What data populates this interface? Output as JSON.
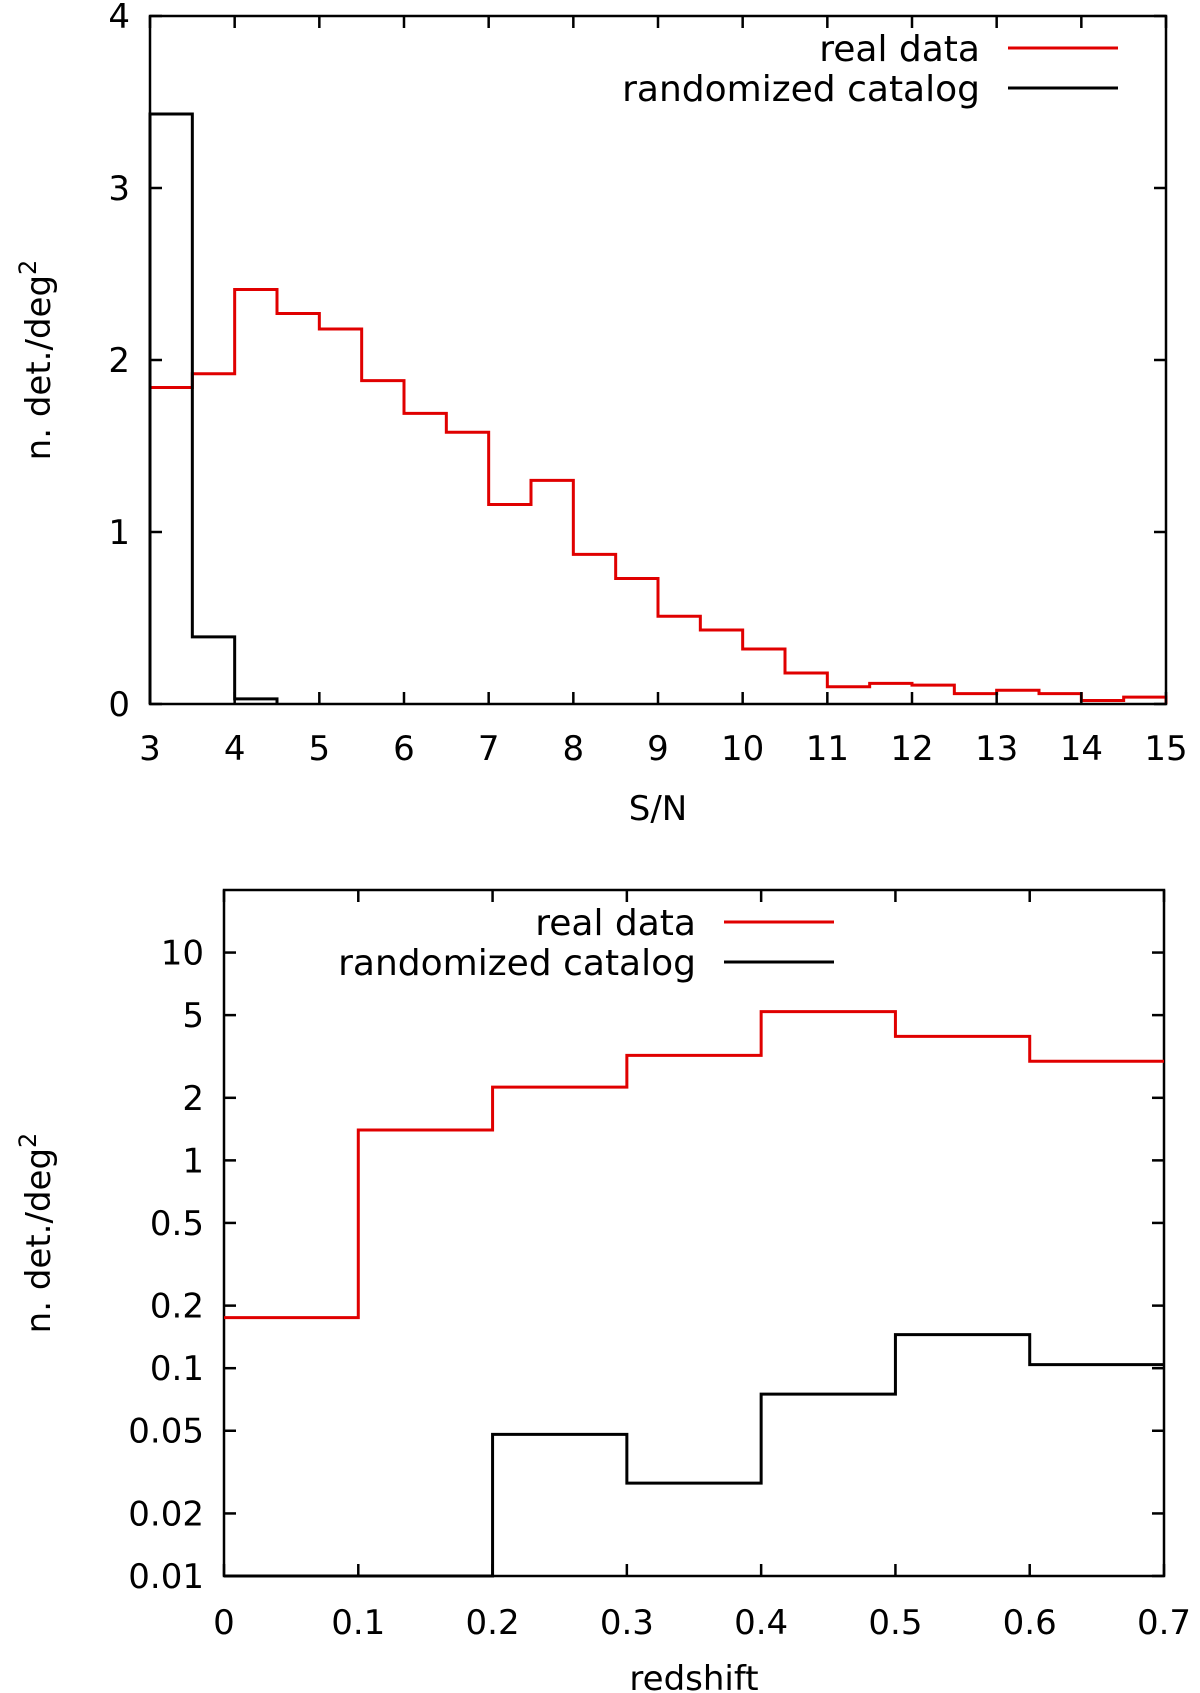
{
  "chart_data": [
    {
      "type": "histogram",
      "xlabel": "S/N",
      "ylabel": "n. det./deg",
      "ylabel_superscript": "2",
      "xlim": [
        3,
        15
      ],
      "ylim": [
        0,
        4
      ],
      "yscale": "linear",
      "xticks": [
        3,
        4,
        5,
        6,
        7,
        8,
        9,
        10,
        11,
        12,
        13,
        14,
        15
      ],
      "xtick_labels": [
        "3",
        "4",
        "5",
        "6",
        "7",
        "8",
        "9",
        "10",
        "11",
        "12",
        "13",
        "14",
        "15"
      ],
      "yticks": [
        0,
        1,
        2,
        3,
        4
      ],
      "ytick_labels": [
        "0",
        "1",
        "2",
        "3",
        "4"
      ],
      "legend_position": "top-right",
      "series": [
        {
          "name": "real data",
          "color": "#e00000",
          "bin_edges": [
            3,
            3.5,
            4,
            4.5,
            5,
            5.5,
            6,
            6.5,
            7,
            7.5,
            8,
            8.5,
            9,
            9.5,
            10,
            10.5,
            11,
            11.5,
            12,
            12.5,
            13,
            13.5,
            14,
            14.5,
            15
          ],
          "values": [
            1.84,
            1.92,
            2.41,
            2.27,
            2.18,
            1.88,
            1.69,
            1.58,
            1.16,
            1.3,
            0.87,
            0.73,
            0.51,
            0.43,
            0.32,
            0.18,
            0.1,
            0.12,
            0.11,
            0.06,
            0.08,
            0.06,
            0.02,
            0.04
          ]
        },
        {
          "name": "randomized catalog",
          "color": "#000000",
          "bin_edges": [
            3,
            3.5,
            4,
            4.5
          ],
          "values": [
            3.43,
            0.39,
            0.03
          ]
        }
      ]
    },
    {
      "type": "histogram",
      "xlabel": "redshift",
      "ylabel": "n. det./deg",
      "ylabel_superscript": "2",
      "xlim": [
        0,
        0.7
      ],
      "ylim": [
        0.01,
        20
      ],
      "yscale": "log",
      "xticks": [
        0,
        0.1,
        0.2,
        0.3,
        0.4,
        0.5,
        0.6,
        0.7
      ],
      "xtick_labels": [
        "0",
        "0.1",
        "0.2",
        "0.3",
        "0.4",
        "0.5",
        "0.6",
        "0.7"
      ],
      "yticks": [
        0.01,
        0.02,
        0.05,
        0.1,
        0.2,
        0.5,
        1,
        2,
        5,
        10
      ],
      "ytick_labels": [
        "0.01",
        "0.02",
        "0.05",
        "0.1",
        "0.2",
        "0.5",
        "1",
        "2",
        "5",
        "10"
      ],
      "legend_position": "top-center",
      "series": [
        {
          "name": "real data",
          "color": "#e00000",
          "bin_edges": [
            0,
            0.1,
            0.2,
            0.3,
            0.4,
            0.5,
            0.6,
            0.7
          ],
          "values": [
            0.175,
            1.4,
            2.25,
            3.2,
            5.2,
            3.95,
            3.0
          ]
        },
        {
          "name": "randomized catalog",
          "color": "#000000",
          "bin_edges": [
            0,
            0.1,
            0.2,
            0.3,
            0.4,
            0.5,
            0.6,
            0.7
          ],
          "values": [
            0.01,
            0.01,
            0.048,
            0.028,
            0.075,
            0.145,
            0.104
          ]
        }
      ]
    }
  ]
}
